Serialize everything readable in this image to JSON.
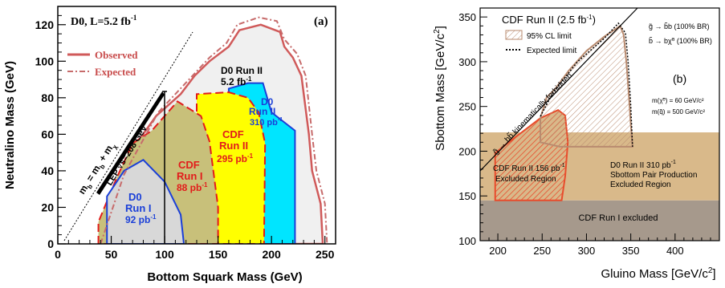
{
  "colors": {
    "observed": "#d05a5a",
    "expected": "#c76b6b",
    "run1_fill": "#d8d8d8",
    "cdf1_fill": "#c8c07a",
    "cdf2_fill": "#ffff00",
    "d0run2_fill": "#00e5ff",
    "excluded_fill": "#f0f0f0",
    "tan": "#d9b98a",
    "gray": "#a6998c",
    "red_hatch": "#e84c2c",
    "brown_hatch": "#b98b6f"
  },
  "chart_data": [
    {
      "type": "area",
      "panel_label": "(a)",
      "title": "D0, L=5.2 fb",
      "title_sup": "-1",
      "xlabel": "Bottom Squark Mass (GeV)",
      "ylabel": "Neutralino Mass (GeV)",
      "xlim": [
        0,
        260
      ],
      "ylim": [
        0,
        130
      ],
      "xticks": [
        "0",
        "50",
        "100",
        "150",
        "200",
        "250"
      ],
      "yticks": [
        "0",
        "20",
        "40",
        "60",
        "80",
        "100",
        "120"
      ],
      "legend": [
        {
          "name": "Observed",
          "style": "solid"
        },
        {
          "name": "Expected",
          "style": "dash-dot"
        }
      ],
      "regions": [
        {
          "name": "D0 Run II 5.2 fb-1 observed",
          "points": [
            [
              38,
              0
            ],
            [
              58,
              38
            ],
            [
              70,
              52
            ],
            [
              92,
              70
            ],
            [
              115,
              82
            ],
            [
              128,
              92
            ],
            [
              142,
              100
            ],
            [
              160,
              108
            ],
            [
              170,
              117
            ],
            [
              190,
              120
            ],
            [
              208,
              116
            ],
            [
              212,
              108
            ],
            [
              220,
              102
            ],
            [
              228,
              92
            ],
            [
              235,
              60
            ],
            [
              238,
              40
            ],
            [
              246,
              22
            ],
            [
              248,
              0
            ]
          ]
        },
        {
          "name": "D0 Run II 310 pb-1",
          "points": [
            [
              160,
              0
            ],
            [
              160,
              85
            ],
            [
              178,
              88
            ],
            [
              192,
              88
            ],
            [
              200,
              72
            ],
            [
              222,
              62
            ],
            [
              222,
              0
            ]
          ]
        },
        {
          "name": "CDF Run II 295 pb-1",
          "points": [
            [
              130,
              0
            ],
            [
              130,
              82
            ],
            [
              160,
              83
            ],
            [
              178,
              80
            ],
            [
              188,
              72
            ],
            [
              194,
              55
            ],
            [
              193,
              0
            ]
          ]
        },
        {
          "name": "CDF Run I 88 pb-1",
          "points": [
            [
              38,
              0
            ],
            [
              38,
              12
            ],
            [
              55,
              36
            ],
            [
              70,
              55
            ],
            [
              88,
              62
            ],
            [
              112,
              78
            ],
            [
              134,
              70
            ],
            [
              142,
              56
            ],
            [
              150,
              20
            ],
            [
              150,
              0
            ]
          ]
        },
        {
          "name": "D0 Run I 92 pb-1",
          "points": [
            [
              46,
              0
            ],
            [
              46,
              26
            ],
            [
              62,
              40
            ],
            [
              80,
              46
            ],
            [
              100,
              34
            ],
            [
              115,
              16
            ],
            [
              118,
              0
            ]
          ]
        }
      ],
      "text": {
        "d0run2": "D0 Run II",
        "d0run2_lumi": "5.2 fb",
        "d0run2b": "D0",
        "d0run2b_2": "Run II",
        "d0run2b_lumi": "310 pb",
        "cdfrun2": "CDF",
        "cdfrun2_2": "Run II",
        "cdfrun2_lumi": "295 pb",
        "cdfrun1": "CDF",
        "cdfrun1_2": "Run I",
        "cdfrun1_lumi": "88 pb",
        "d0run1": "D0",
        "d0run1_2": "Run I",
        "d0run1_lumi": "92 pb",
        "lep": "LEP",
        "lep_sqrt": "√s=208 GeV",
        "kin_m": "m",
        "kin_b": "b",
        "kin_eq": " = m",
        "kin_plus": " + m",
        "sup_m1": "-1"
      }
    },
    {
      "type": "area",
      "panel_label": "(b)",
      "title": "CDF Run II (2.5 fb",
      "title_sup": "-1",
      "title_end": ")",
      "xlabel": "Gluino Mass [GeV/c",
      "xlabel_sup": "2",
      "xlabel_end": "]",
      "ylabel": "Sbottom Mass [GeV/c",
      "ylabel_sup": "2",
      "ylabel_end": "]",
      "xlim": [
        180,
        450
      ],
      "ylim": [
        100,
        360
      ],
      "xticks": [
        "200",
        "250",
        "300",
        "350",
        "400"
      ],
      "yticks": [
        "100",
        "150",
        "200",
        "250",
        "300",
        "350"
      ],
      "legend": [
        {
          "name": "95% CL limit",
          "style": "hatch"
        },
        {
          "name": "Expected limit",
          "style": "dotted"
        }
      ],
      "decays": [
        "g̃ → b̃b (100% BR)",
        "b̃ → bχ̃⁰ (100% BR)"
      ],
      "params": [
        "m(χ̃⁰) = 60 GeV/c²",
        "m(q̃) = 500 GeV/c²"
      ],
      "forbidden_label": "g̃ → bb̃ kinematically forbidden",
      "regions": [
        {
          "name": "CDF Run I excluded",
          "points": [
            [
              180,
              100
            ],
            [
              450,
              100
            ],
            [
              450,
              145
            ],
            [
              180,
              145
            ]
          ]
        },
        {
          "name": "D0 Run II 310 pb-1 Sbottom Pair Production Excluded Region",
          "points": [
            [
              180,
              145
            ],
            [
              450,
              145
            ],
            [
              450,
              221
            ],
            [
              180,
              221
            ]
          ]
        },
        {
          "name": "CDF Run II 156 pb-1 Excluded Region",
          "points": [
            [
              197,
              145
            ],
            [
              197,
              198
            ],
            [
              215,
              212
            ],
            [
              248,
              237
            ],
            [
              268,
              246
            ],
            [
              276,
              240
            ],
            [
              279,
              210
            ],
            [
              276,
              172
            ],
            [
              272,
              145
            ]
          ]
        },
        {
          "name": "95% CL limit",
          "points": [
            [
              248,
              237
            ],
            [
              255,
              260
            ],
            [
              265,
              270
            ],
            [
              280,
              290
            ],
            [
              300,
              312
            ],
            [
              320,
              328
            ],
            [
              338,
              340
            ],
            [
              342,
              330
            ],
            [
              345,
              300
            ],
            [
              348,
              260
            ],
            [
              350,
              230
            ],
            [
              352,
              205
            ],
            [
              345,
              205
            ],
            [
              300,
              205
            ],
            [
              270,
              205
            ],
            [
              248,
              210
            ]
          ]
        }
      ],
      "text": {
        "run1": "CDF Run I excluded",
        "d0a": "D0 Run II 310 pb",
        "d0b": "Sbottom Pair Production",
        "d0c": "Excluded Region",
        "cdfa": "CDF Run II 156 pb",
        "cdfb": "Excluded Region",
        "sup": "-1"
      }
    }
  ]
}
